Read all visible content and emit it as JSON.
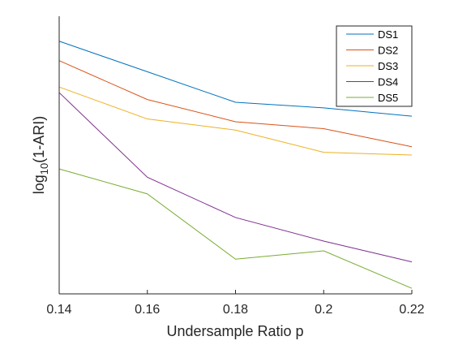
{
  "chart_data": {
    "type": "line",
    "title": "",
    "xlabel": "Undersample Ratio p",
    "ylabel_base": "log",
    "ylabel_sub": "10",
    "ylabel_rest": "(1-ARI)",
    "x": [
      0.14,
      0.16,
      0.18,
      0.2,
      0.22
    ],
    "x_tick_labels": [
      "0.14",
      "0.16",
      "0.18",
      "0.2",
      "0.22"
    ],
    "xlim": [
      0.14,
      0.22
    ],
    "ylim": [
      0,
      1
    ],
    "y_ticks_shown": false,
    "grid": false,
    "legend_location": "top-right",
    "series": [
      {
        "name": "DS1",
        "color": "#0072BD",
        "values": [
          0.91,
          0.8,
          0.69,
          0.67,
          0.64
        ]
      },
      {
        "name": "DS2",
        "color": "#D95319",
        "values": [
          0.84,
          0.7,
          0.62,
          0.595,
          0.53
        ]
      },
      {
        "name": "DS3",
        "color": "#EDB120",
        "values": [
          0.745,
          0.63,
          0.59,
          0.51,
          0.5
        ]
      },
      {
        "name": "DS4",
        "color": "#7E2F8E",
        "values": [
          0.725,
          0.42,
          0.275,
          0.19,
          0.115
        ]
      },
      {
        "name": "DS5",
        "color": "#77AC30",
        "values": [
          0.45,
          0.36,
          0.125,
          0.155,
          0.02
        ]
      }
    ]
  }
}
